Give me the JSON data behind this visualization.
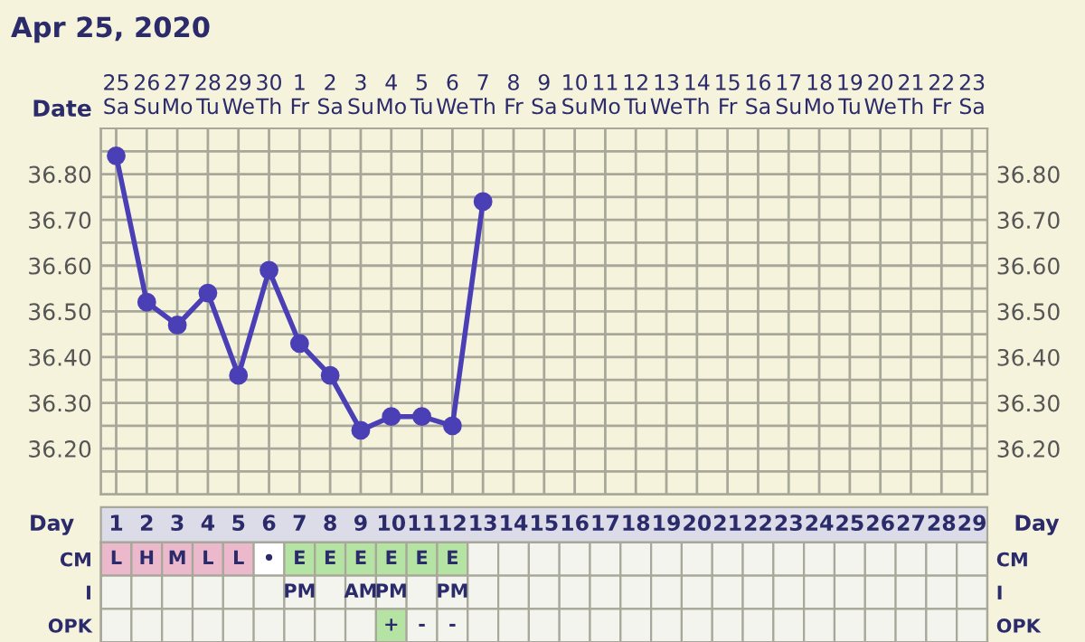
{
  "chart_data": [
    {
      "type": "line",
      "title": "Apr 25, 2020",
      "xlabel": "Date",
      "categories": [
        "25\nSa",
        "26\nSu",
        "27\nMo",
        "28\nTu",
        "29\nWe",
        "30\nTh",
        "1\nFr",
        "2\nSa",
        "3\nSu",
        "4\nMo",
        "5\nTu",
        "6\nWe",
        "7\nTh",
        "8\nFr",
        "9\nSa",
        "10\nSu",
        "11\nMo",
        "12\nTu",
        "13\nWe",
        "14\nTh",
        "15\nFr",
        "16\nSa",
        "17\nSu",
        "18\nMo",
        "19\nTu",
        "20\nWe",
        "21\nTh",
        "22\nFr",
        "23\nSa"
      ],
      "series": [
        {
          "color": "#4a3fb5",
          "values": [
            36.84,
            36.52,
            36.47,
            36.54,
            36.36,
            36.59,
            36.43,
            36.36,
            36.24,
            36.27,
            36.27,
            36.25,
            36.74,
            null,
            null,
            null,
            null,
            null,
            null,
            null,
            null,
            null,
            null,
            null,
            null,
            null,
            null,
            null,
            null
          ]
        }
      ],
      "ylim": [
        36.1,
        36.9
      ],
      "yticks": [
        {
          "value": 36.15,
          "label": null
        },
        {
          "value": 36.2,
          "label": "36.20"
        },
        {
          "value": 36.25,
          "label": null
        },
        {
          "value": 36.3,
          "label": "36.30"
        },
        {
          "value": 36.35,
          "label": null
        },
        {
          "value": 36.4,
          "label": "36.40"
        },
        {
          "value": 36.45,
          "label": null
        },
        {
          "value": 36.5,
          "label": "36.50"
        },
        {
          "value": 36.55,
          "label": null
        },
        {
          "value": 36.6,
          "label": "36.60"
        },
        {
          "value": 36.65,
          "label": null
        },
        {
          "value": 36.7,
          "label": "36.70"
        },
        {
          "value": 36.75,
          "label": null
        },
        {
          "value": 36.8,
          "label": "36.80"
        },
        {
          "value": 36.85,
          "label": null
        }
      ],
      "y2lim": [
        36.1,
        36.9
      ],
      "y2ticks": [
        {
          "value": 36.2,
          "label": "36.20"
        },
        {
          "value": 36.3,
          "label": "36.30"
        },
        {
          "value": 36.4,
          "label": "36.40"
        },
        {
          "value": 36.5,
          "label": "36.50"
        },
        {
          "value": 36.6,
          "label": "36.60"
        },
        {
          "value": 36.7,
          "label": "36.70"
        },
        {
          "value": 36.8,
          "label": "36.80"
        }
      ],
      "grid": true,
      "marker": "circle",
      "line_style": "solid",
      "legend": false
    },
    {
      "type": "heatmap",
      "xlabel": "Day",
      "cells": [
        [
          null,
          null,
          null,
          null,
          null,
          null,
          null,
          null,
          null,
          null,
          null,
          null,
          null,
          null,
          null,
          null,
          null,
          null,
          null,
          null,
          null,
          null,
          null,
          null,
          null,
          null,
          null,
          null,
          null
        ],
        [
          null,
          null,
          null,
          null,
          null,
          null,
          null,
          null,
          null,
          null,
          null,
          null,
          null,
          null,
          null,
          null,
          null,
          null,
          null,
          null,
          null,
          null,
          null,
          null,
          null,
          null,
          null,
          null,
          null
        ],
        [
          null,
          null,
          null,
          null,
          null,
          null,
          null,
          null,
          null,
          null,
          null,
          null,
          null,
          null,
          null,
          null,
          null,
          null,
          null,
          null,
          null,
          null,
          null,
          null,
          null,
          null,
          null,
          null,
          null
        ]
      ],
      "categories": [
        "1",
        "2",
        "3",
        "4",
        "5",
        "6",
        "7",
        "8",
        "9",
        "10",
        "11",
        "12",
        "13",
        "14",
        "15",
        "16",
        "17",
        "18",
        "19",
        "20",
        "21",
        "22",
        "23",
        "24",
        "25",
        "26",
        "27",
        "28",
        "29"
      ],
      "y_categories": [
        "CM",
        "I",
        "OPK"
      ],
      "y2_categories": [
        "CM",
        "I",
        "OPK"
      ],
      "cell_labels": [
        [
          "L",
          "H",
          "M",
          "L",
          "L",
          "•",
          "E",
          "E",
          "E",
          "E",
          "E",
          "E",
          null,
          null,
          null,
          null,
          null,
          null,
          null,
          null,
          null,
          null,
          null,
          null,
          null,
          null,
          null,
          null,
          null
        ],
        [
          null,
          null,
          null,
          null,
          null,
          null,
          "PM",
          null,
          "AM",
          "PM",
          null,
          "PM",
          null,
          null,
          null,
          null,
          null,
          null,
          null,
          null,
          null,
          null,
          null,
          null,
          null,
          null,
          null,
          null,
          null
        ],
        [
          null,
          null,
          null,
          null,
          null,
          null,
          null,
          null,
          null,
          "+",
          "-",
          "-",
          null,
          null,
          null,
          null,
          null,
          null,
          null,
          null,
          null,
          null,
          null,
          null,
          null,
          null,
          null,
          null,
          null
        ]
      ],
      "colors": [
        [
          "#ebb8cc",
          "#ebb8cc",
          "#ebb8cc",
          "#ebb8cc",
          "#ebb8cc",
          "#ffffff",
          "#b5e3a3",
          "#b5e3a3",
          "#b5e3a3",
          "#b5e3a3",
          "#b5e3a3",
          "#b5e3a3",
          null,
          null,
          null,
          null,
          null,
          null,
          null,
          null,
          null,
          null,
          null,
          null,
          null,
          null,
          null,
          null,
          null
        ],
        [
          null,
          null,
          null,
          null,
          null,
          null,
          null,
          null,
          null,
          null,
          null,
          null,
          null,
          null,
          null,
          null,
          null,
          null,
          null,
          null,
          null,
          null,
          null,
          null,
          null,
          null,
          null,
          null,
          null
        ],
        [
          null,
          null,
          null,
          null,
          null,
          null,
          null,
          null,
          null,
          "#b5e3a3",
          null,
          null,
          null,
          null,
          null,
          null,
          null,
          null,
          null,
          null,
          null,
          null,
          null,
          null,
          null,
          null,
          null,
          null,
          null
        ]
      ]
    }
  ]
}
